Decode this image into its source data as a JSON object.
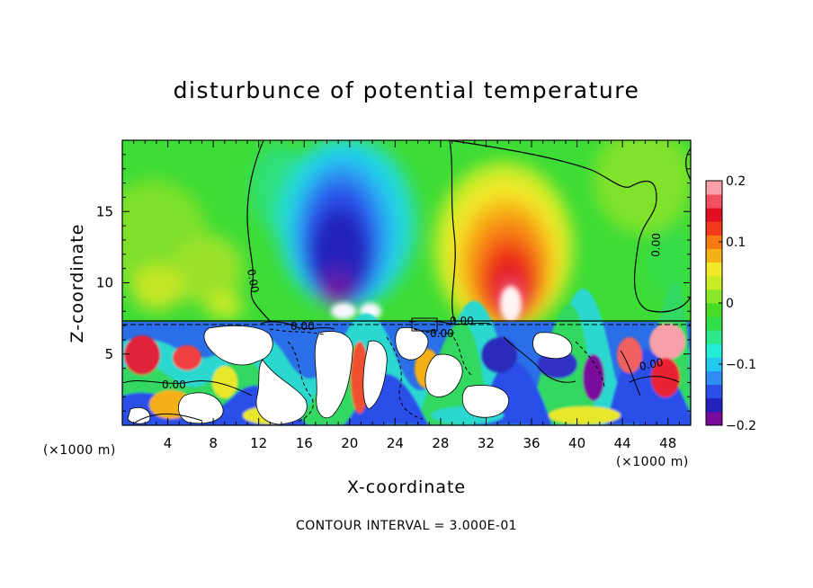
{
  "chart_data": {
    "type": "heatmap",
    "title": "disturbunce of potential temperature",
    "xlabel": "X-coordinate",
    "ylabel": "Z-coordinate",
    "x_unit_left": "(×1000 m)",
    "x_unit_right": "(×1000 m)",
    "xlim": [
      0,
      50
    ],
    "ylim": [
      0,
      20
    ],
    "x_ticks": [
      4,
      8,
      12,
      16,
      20,
      24,
      28,
      32,
      36,
      40,
      44,
      48
    ],
    "y_ticks": [
      5,
      10,
      15
    ],
    "colorbar": {
      "range": [
        -0.2,
        0.2
      ],
      "tick_values": [
        -0.2,
        -0.1,
        0,
        0.1,
        0.2
      ],
      "tick_labels": [
        "−0.2",
        "−0.1",
        "0",
        "0.1",
        "0.2"
      ],
      "colors": [
        "#7a0a9c",
        "#2222bb",
        "#2a50e8",
        "#2f8cf2",
        "#22c8f0",
        "#25ecd6",
        "#2ee88a",
        "#32dd4a",
        "#48dc28",
        "#8ae82a",
        "#c8ec28",
        "#f4e82c",
        "#f6b018",
        "#f67a14",
        "#f03a18",
        "#e01020",
        "#f05060",
        "#f8a0aa"
      ]
    },
    "contour_labels": [
      "0.00",
      "0.00",
      "0.00",
      "0.00",
      "0.00",
      "0.00",
      "0.00"
    ],
    "features": {
      "cold_anomaly": {
        "x": 20,
        "z": 11,
        "value": -0.2
      },
      "warm_anomaly": {
        "x": 33.5,
        "z": 10,
        "value": 0.2
      },
      "turbulent_layer_top_z": 7.3
    },
    "footer": "CONTOUR INTERVAL = 3.000E-01"
  }
}
